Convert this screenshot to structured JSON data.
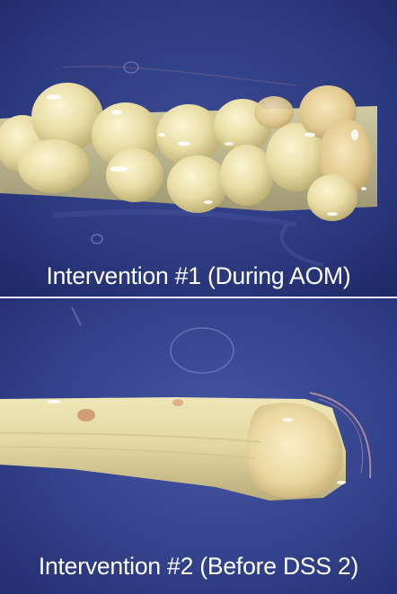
{
  "figure": {
    "panels": [
      {
        "caption": "Intervention #1 (During AOM)",
        "subject": "colon-specimen-with-tumors"
      },
      {
        "caption": "Intervention #2 (Before DSS 2)",
        "subject": "colon-specimen-smooth"
      }
    ],
    "colors": {
      "background": "#2a3574",
      "divider": "#e9ecf5",
      "tissue": "#e8dfae",
      "caption_text": "#ffffff"
    }
  }
}
